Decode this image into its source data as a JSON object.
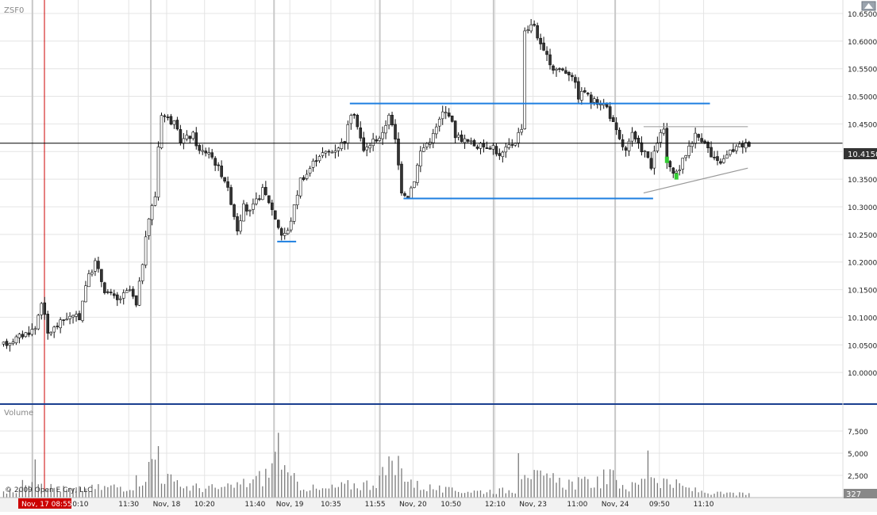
{
  "symbol": "ZSF0",
  "volume_panel_label": "Volume",
  "copyright": "© 2009 Open E Cry, LLC",
  "current_price_label": "10.4150",
  "current_volume_label": "327",
  "cursor_time_label": "Nov, 17 08:55",
  "colors": {
    "up": "#ffffff",
    "down": "#333333",
    "wick": "#111111",
    "level_line": "#1e7fe0",
    "trend_line": "#999999",
    "grid": "#e4e4e4",
    "session_divider": "#c8c8c8",
    "cursor_line": "#cc0000",
    "price_tag_bg": "#333333",
    "time_tag_bg": "#cc0000",
    "panel_separator": "#1a3f8f",
    "highlight_green": "#33cc33"
  },
  "chart_data": {
    "type": "candlestick",
    "ylim": [
      9.95,
      10.66
    ],
    "price_ticks": [
      "10.0000",
      "10.0500",
      "10.1000",
      "10.1500",
      "10.2000",
      "10.2500",
      "10.3000",
      "10.3500",
      "10.4000",
      "10.4500",
      "10.5000",
      "10.5500",
      "10.6000",
      "10.6500"
    ],
    "volume_ylim": [
      0,
      8750
    ],
    "volume_ticks": [
      "2,500",
      "5,000",
      "7,500"
    ],
    "x_labels": [
      "10:10",
      "11:30",
      "Nov, 18",
      "10:20",
      "11:40",
      "Nov, 19",
      "10:35",
      "11:55",
      "Nov, 20",
      "10:50",
      "12:10",
      "Nov, 23",
      "11:00",
      "Nov, 24",
      "09:50",
      "11:10"
    ],
    "last_price": 10.415,
    "horizontal_levels": [
      {
        "price": 10.487,
        "from_bar": 110,
        "to_bar": 224
      },
      {
        "price": 10.315,
        "from_bar": 127,
        "to_bar": 206
      },
      {
        "price": 10.237,
        "from_bar": 87,
        "to_bar": 93
      }
    ],
    "triangle": {
      "top": 10.445,
      "low_start": 10.325,
      "low_end": 10.37,
      "from_bar": 203,
      "to_bar": 236
    },
    "anchors": [
      [
        0,
        10.05
      ],
      [
        10,
        10.08
      ],
      [
        12,
        10.13
      ],
      [
        14,
        10.07
      ],
      [
        20,
        10.1
      ],
      [
        24,
        10.1
      ],
      [
        26,
        10.16
      ],
      [
        29,
        10.2
      ],
      [
        32,
        10.15
      ],
      [
        36,
        10.13
      ],
      [
        40,
        10.15
      ],
      [
        42,
        10.12
      ],
      [
        44,
        10.2
      ],
      [
        46,
        10.28
      ],
      [
        48,
        10.32
      ],
      [
        49,
        10.41
      ],
      [
        50,
        10.47
      ],
      [
        54,
        10.45
      ],
      [
        56,
        10.42
      ],
      [
        60,
        10.43
      ],
      [
        62,
        10.4
      ],
      [
        65,
        10.4
      ],
      [
        70,
        10.35
      ],
      [
        72,
        10.31
      ],
      [
        74,
        10.26
      ],
      [
        76,
        10.3
      ],
      [
        78,
        10.29
      ],
      [
        82,
        10.33
      ],
      [
        84,
        10.31
      ],
      [
        86,
        10.28
      ],
      [
        88,
        10.25
      ],
      [
        90,
        10.255
      ],
      [
        92,
        10.3
      ],
      [
        94,
        10.35
      ],
      [
        96,
        10.36
      ],
      [
        98,
        10.38
      ],
      [
        100,
        10.395
      ],
      [
        104,
        10.4
      ],
      [
        108,
        10.42
      ],
      [
        110,
        10.47
      ],
      [
        112,
        10.45
      ],
      [
        114,
        10.4
      ],
      [
        117,
        10.42
      ],
      [
        120,
        10.43
      ],
      [
        122,
        10.47
      ],
      [
        124,
        10.42
      ],
      [
        126,
        10.33
      ],
      [
        128,
        10.32
      ],
      [
        130,
        10.35
      ],
      [
        132,
        10.4
      ],
      [
        136,
        10.43
      ],
      [
        139,
        10.47
      ],
      [
        141,
        10.47
      ],
      [
        143,
        10.43
      ],
      [
        146,
        10.42
      ],
      [
        150,
        10.41
      ],
      [
        155,
        10.41
      ],
      [
        157,
        10.39
      ],
      [
        160,
        10.41
      ],
      [
        162,
        10.42
      ],
      [
        164,
        10.445
      ],
      [
        165,
        10.62
      ],
      [
        168,
        10.63
      ],
      [
        170,
        10.59
      ],
      [
        172,
        10.57
      ],
      [
        174,
        10.55
      ],
      [
        176,
        10.55
      ],
      [
        180,
        10.54
      ],
      [
        182,
        10.5
      ],
      [
        184,
        10.51
      ],
      [
        186,
        10.49
      ],
      [
        189,
        10.49
      ],
      [
        191,
        10.48
      ],
      [
        193,
        10.45
      ],
      [
        195,
        10.42
      ],
      [
        197,
        10.4
      ],
      [
        199,
        10.43
      ],
      [
        201,
        10.41
      ],
      [
        203,
        10.4
      ],
      [
        205,
        10.37
      ],
      [
        207,
        10.42
      ],
      [
        209,
        10.44
      ],
      [
        210,
        10.38
      ],
      [
        212,
        10.355
      ],
      [
        214,
        10.37
      ],
      [
        217,
        10.41
      ],
      [
        219,
        10.43
      ],
      [
        222,
        10.42
      ],
      [
        224,
        10.39
      ],
      [
        226,
        10.38
      ],
      [
        228,
        10.385
      ],
      [
        230,
        10.4
      ],
      [
        233,
        10.41
      ],
      [
        236,
        10.415
      ]
    ],
    "volume_anchors": [
      [
        0,
        600
      ],
      [
        5,
        1000
      ],
      [
        9,
        3200
      ],
      [
        11,
        2600
      ],
      [
        15,
        1300
      ],
      [
        20,
        1000
      ],
      [
        25,
        1000
      ],
      [
        30,
        1200
      ],
      [
        40,
        1500
      ],
      [
        45,
        3000
      ],
      [
        48,
        5000
      ],
      [
        50,
        3000
      ],
      [
        55,
        1500
      ],
      [
        60,
        1300
      ],
      [
        70,
        1100
      ],
      [
        80,
        2200
      ],
      [
        84,
        3100
      ],
      [
        86,
        4800
      ],
      [
        88,
        3000
      ],
      [
        94,
        1600
      ],
      [
        100,
        900
      ],
      [
        110,
        1600
      ],
      [
        116,
        1700
      ],
      [
        122,
        3500
      ],
      [
        124,
        3700
      ],
      [
        127,
        3400
      ],
      [
        130,
        1600
      ],
      [
        140,
        900
      ],
      [
        150,
        800
      ],
      [
        160,
        900
      ],
      [
        162,
        1000
      ],
      [
        163,
        3200
      ],
      [
        165,
        4500
      ],
      [
        168,
        2500
      ],
      [
        175,
        2000
      ],
      [
        180,
        1800
      ],
      [
        185,
        1800
      ],
      [
        192,
        2600
      ],
      [
        198,
        1200
      ],
      [
        202,
        2000
      ],
      [
        204,
        4200
      ],
      [
        206,
        2600
      ],
      [
        210,
        2000
      ],
      [
        214,
        1400
      ],
      [
        220,
        800
      ],
      [
        226,
        500
      ],
      [
        230,
        500
      ],
      [
        236,
        400
      ]
    ],
    "volume_spikes": [
      [
        10,
        4300
      ],
      [
        49,
        5800
      ],
      [
        87,
        7300
      ],
      [
        125,
        4700
      ],
      [
        163,
        5000
      ],
      [
        204,
        5300
      ]
    ]
  }
}
